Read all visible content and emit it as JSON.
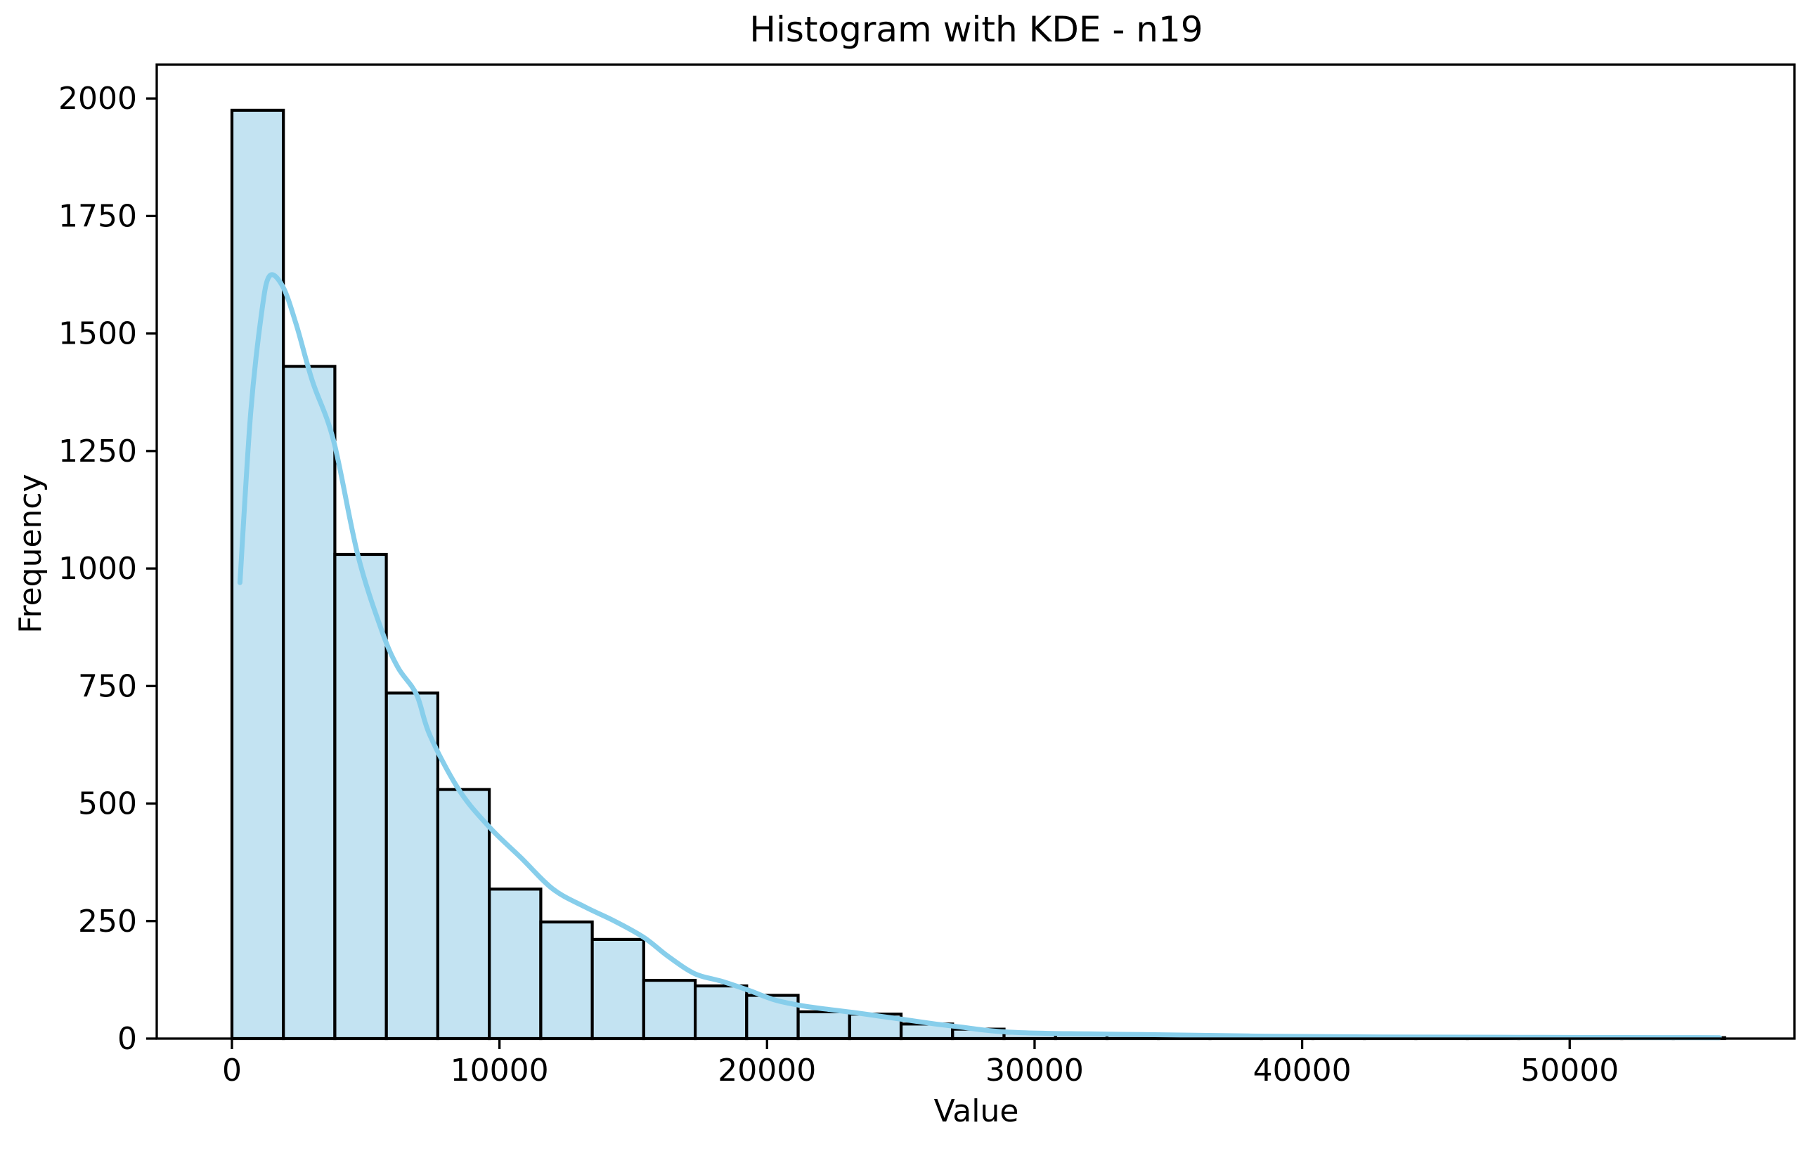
{
  "figure": {
    "title": "Histogram with KDE - n19",
    "xlabel": "Value",
    "ylabel": "Frequency"
  },
  "chart_data": {
    "type": "bar",
    "subtype": "histogram_with_kde",
    "title": "Histogram with KDE - n19",
    "xlabel": "Value",
    "ylabel": "Frequency",
    "grid": false,
    "legend": null,
    "bin_start": 0,
    "bin_width": 1924,
    "counts": [
      1975,
      1430,
      1030,
      735,
      530,
      318,
      248,
      211,
      124,
      112,
      92,
      57,
      52,
      31,
      20,
      12,
      10,
      8,
      6,
      4,
      3,
      3,
      3,
      2,
      2,
      2,
      2,
      2,
      2
    ],
    "kde_series": {
      "name": "KDE",
      "points": [
        [
          300,
          970
        ],
        [
          700,
          1330
        ],
        [
          1100,
          1540
        ],
        [
          1400,
          1622
        ],
        [
          1900,
          1600
        ],
        [
          2400,
          1520
        ],
        [
          3000,
          1400
        ],
        [
          3800,
          1272
        ],
        [
          4700,
          1030
        ],
        [
          5600,
          868
        ],
        [
          6200,
          790
        ],
        [
          6900,
          732
        ],
        [
          7400,
          645
        ],
        [
          8500,
          528
        ],
        [
          9620,
          450
        ],
        [
          10800,
          385
        ],
        [
          12000,
          318
        ],
        [
          13200,
          280
        ],
        [
          14300,
          250
        ],
        [
          15400,
          215
        ],
        [
          16300,
          175
        ],
        [
          17300,
          138
        ],
        [
          18300,
          122
        ],
        [
          19300,
          103
        ],
        [
          20300,
          82
        ],
        [
          21300,
          70
        ],
        [
          22300,
          62
        ],
        [
          23300,
          55
        ],
        [
          24300,
          47
        ],
        [
          25300,
          39
        ],
        [
          26300,
          31
        ],
        [
          27300,
          24
        ],
        [
          28300,
          17
        ],
        [
          29300,
          13
        ],
        [
          30500,
          11
        ],
        [
          32000,
          10
        ],
        [
          34000,
          8.5
        ],
        [
          36000,
          7
        ],
        [
          38000,
          5.5
        ],
        [
          40000,
          4.5
        ],
        [
          43000,
          3.5
        ],
        [
          46000,
          3
        ],
        [
          49000,
          2.5
        ],
        [
          52000,
          2.2
        ],
        [
          55600,
          2
        ]
      ]
    },
    "x_ticks": [
      0,
      10000,
      20000,
      30000,
      40000,
      50000
    ],
    "y_ticks": [
      0,
      250,
      500,
      750,
      1000,
      1250,
      1500,
      1750,
      2000
    ],
    "x_range": [
      -2810,
      58400
    ],
    "y_range": [
      0,
      2072
    ],
    "colors": {
      "bar_fill": "#c3e3f2",
      "bar_edge": "#000000",
      "kde_line": "#87ceeb",
      "spine": "#000000",
      "text": "#000000",
      "background": "#ffffff"
    }
  }
}
